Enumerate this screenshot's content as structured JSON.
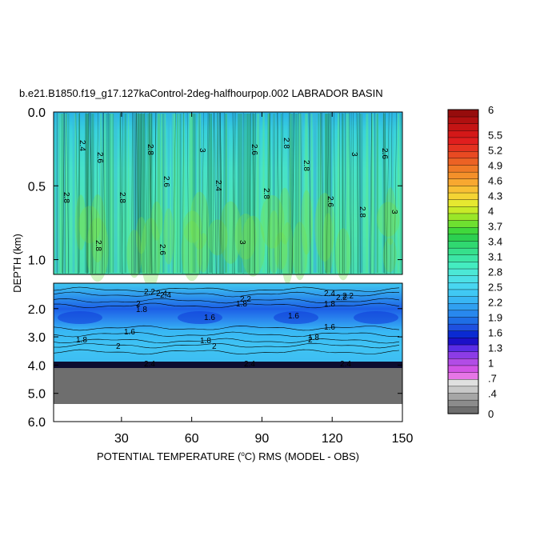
{
  "chart_data": {
    "type": "heatmap",
    "title": "b.e21.B1850.f19_g17.127kaControl-2deg-halfhourpop.002 LABRADOR BASIN",
    "xlabel": "POTENTIAL TEMPERATURE (",
    "xlabel_degree": "o",
    "xlabel_rest": "C) RMS (MODEL - OBS)",
    "ylabel": "DEPTH (km)",
    "x_range": [
      1,
      150
    ],
    "x_ticks": [
      "30",
      "60",
      "90",
      "120",
      "150"
    ],
    "y_ticks_top": [
      "0.0",
      "0.5",
      "1.0"
    ],
    "y_ticks_bottom": [
      "2.0",
      "3.0",
      "4.0",
      "5.0",
      "6.0"
    ],
    "y_range_top": [
      0.0,
      1.1
    ],
    "y_range_bottom": [
      1.1,
      6.0
    ],
    "colorbar": {
      "labels": [
        "0",
        ".4",
        ".7",
        "1",
        "1.3",
        "1.6",
        "1.9",
        "2.2",
        "2.5",
        "2.8",
        "3.1",
        "3.4",
        "3.7",
        "4",
        "4.3",
        "4.6",
        "4.9",
        "5.2",
        "5.5",
        "6"
      ],
      "colors": [
        "#6e6e6e",
        "#8c8c8c",
        "#a6a6a6",
        "#c8c8c8",
        "#e0e0e0",
        "#e676e6",
        "#d254e6",
        "#b24ce6",
        "#8c3ce6",
        "#5a2ce6",
        "#1b10c8",
        "#0a2ad2",
        "#1e50e0",
        "#1e6ee6",
        "#2888ee",
        "#30a0f0",
        "#38b6f4",
        "#40c8f4",
        "#48d6f0",
        "#4ce0e6",
        "#4ce8d6",
        "#44ecc0",
        "#3ce6a6",
        "#36e08c",
        "#30d870",
        "#2cd050",
        "#40d83c",
        "#6ee030",
        "#9ae628",
        "#c8ea28",
        "#e6e830",
        "#f4d434",
        "#f8c034",
        "#f8a830",
        "#f4902a",
        "#f07a26",
        "#ec6224",
        "#e84a22",
        "#e43220",
        "#e01e1e",
        "#d41818",
        "#c41414",
        "#b01010",
        "#960c0c"
      ]
    },
    "top_panel": {
      "description_free_values": true,
      "mean_value": 2.8,
      "contour_labels": [
        "2.4",
        "2.6",
        "2.8",
        "3",
        "2.6",
        "2.8",
        "2.8",
        "3",
        "2.6",
        "2.8",
        "2.8",
        "2.6",
        "2.4",
        "2.8",
        "2.6",
        "2.8",
        "3",
        "2.8",
        "2.6",
        "3"
      ]
    },
    "bottom_panel": {
      "contour_labels": [
        "2.4",
        "2.2",
        "2",
        "1.8",
        "1.6",
        "1.6",
        "1.8",
        "2",
        "1.8",
        "2",
        "2.2",
        "2.4",
        "1.8",
        "1.6",
        "1.8",
        "2",
        "2.2",
        "1.8",
        "1.6",
        "2.2",
        "2.4"
      ],
      "bottom_labels": [
        "2.4",
        "2.4",
        "2.4"
      ]
    }
  }
}
